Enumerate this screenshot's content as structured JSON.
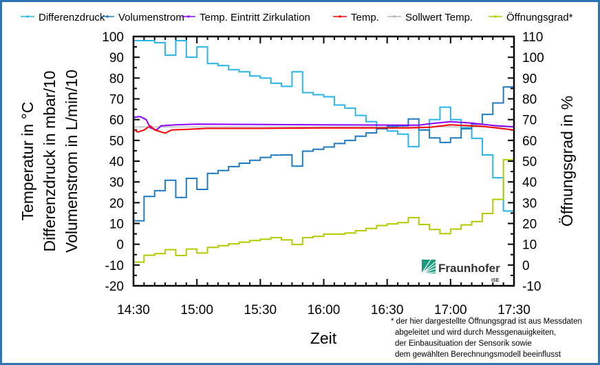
{
  "chart_data": {
    "type": "line",
    "title": "",
    "xlabel": "Zeit",
    "ylabel_left": [
      "Temperatur in °C",
      "Differenzdruck in mbar/10",
      "Volumenstrom in L/min/10"
    ],
    "ylabel_right": "Öffnungsgrad in %",
    "xlim": [
      "14:30",
      "17:30"
    ],
    "ylim_left": [
      -20,
      100
    ],
    "ylim_right": [
      -10,
      110
    ],
    "x_ticks": [
      "14:30",
      "15:00",
      "15:30",
      "16:00",
      "16:30",
      "17:00",
      "17:30"
    ],
    "y_ticks_left": [
      "-20",
      "-10",
      "0",
      "10",
      "20",
      "30",
      "40",
      "50",
      "60",
      "70",
      "80",
      "90",
      "100"
    ],
    "y_ticks_right": [
      "-10",
      "0",
      "10",
      "20",
      "30",
      "40",
      "50",
      "60",
      "70",
      "80",
      "90",
      "100",
      "110"
    ],
    "grid": false,
    "legend_position": "top",
    "step_interval_minutes": 5,
    "series": [
      {
        "name": "Differenzdruck",
        "axis": "left",
        "color": "#2bb5e8",
        "step": true,
        "values": [
          98,
          98,
          97,
          91,
          98,
          90,
          95,
          87,
          86,
          84,
          83,
          81,
          80,
          77.5,
          76,
          83,
          73,
          72,
          71,
          67,
          65.5,
          62,
          59,
          56,
          54.5,
          53,
          47,
          55,
          60,
          66,
          60,
          56,
          51,
          43,
          32,
          16
        ]
      },
      {
        "name": "Volumenstrom",
        "axis": "left",
        "color": "#1f7bc4",
        "step": true,
        "values": [
          11.3,
          23,
          25.8,
          30.8,
          22.5,
          31.7,
          26.4,
          34.1,
          35.5,
          37.4,
          39,
          40.4,
          41.8,
          42.9,
          43,
          37.6,
          44.8,
          45.7,
          46.8,
          48.5,
          50,
          52,
          53.6,
          55.6,
          56.7,
          57,
          60.3,
          55,
          51.2,
          49,
          51.2,
          55.6,
          57.8,
          62.5,
          68,
          75.7
        ]
      },
      {
        "name": "Temp. Eintritt Zirkulation",
        "axis": "left",
        "color": "#8b00ff",
        "step": false,
        "points": [
          [
            "14:30",
            61
          ],
          [
            "14:33",
            61.5
          ],
          [
            "14:36",
            60
          ],
          [
            "14:38",
            56
          ],
          [
            "14:41",
            55
          ],
          [
            "14:43",
            57
          ],
          [
            "14:50",
            57.5
          ],
          [
            "15:00",
            57.8
          ],
          [
            "16:00",
            57.5
          ],
          [
            "16:45",
            57.3
          ],
          [
            "16:50",
            58
          ],
          [
            "17:00",
            59
          ],
          [
            "17:10",
            58.3
          ],
          [
            "17:20",
            57.2
          ],
          [
            "17:30",
            56.5
          ]
        ]
      },
      {
        "name": "Temp.",
        "axis": "left",
        "color": "#ff0000",
        "step": false,
        "points": [
          [
            "14:30",
            55.5
          ],
          [
            "14:32",
            54
          ],
          [
            "14:35",
            55
          ],
          [
            "14:38",
            57
          ],
          [
            "14:40",
            55
          ],
          [
            "14:45",
            53.5
          ],
          [
            "14:48",
            55
          ],
          [
            "14:55",
            55.3
          ],
          [
            "15:05",
            55.8
          ],
          [
            "15:30",
            55.8
          ],
          [
            "16:00",
            56
          ],
          [
            "16:40",
            56
          ],
          [
            "16:50",
            56.3
          ],
          [
            "17:00",
            57.5
          ],
          [
            "17:15",
            56.8
          ],
          [
            "17:30",
            55
          ]
        ]
      },
      {
        "name": "Sollwert Temp.",
        "axis": "left",
        "color": "#b4b4b4",
        "step": false,
        "points": [
          [
            "14:30",
            56.5
          ],
          [
            "17:30",
            56.5
          ]
        ]
      },
      {
        "name": "Öffnungsgrad*",
        "axis": "right",
        "color": "#b3cc00",
        "step": true,
        "values": [
          1.4,
          4.7,
          5.5,
          7.4,
          4.6,
          7.7,
          5.8,
          8.5,
          9.3,
          10.2,
          11,
          11.8,
          12.4,
          13.2,
          12.1,
          9.9,
          13.2,
          13.8,
          14.9,
          14.9,
          15.4,
          16.5,
          17.6,
          19,
          19.8,
          20.4,
          22.8,
          19.5,
          17.1,
          15.1,
          17.3,
          19.3,
          20.9,
          24.8,
          31.6,
          50.7
        ]
      }
    ],
    "footnote": [
      "* der hier dargestellte Öffnungsgrad ist aus Messdaten",
      "abgeleitet und wird durch Messgenauigkeiten,",
      "der Einbausituation der Sensorik sowie",
      "dem gewählten Berechnungsmodell beeinflusst"
    ]
  },
  "logo": {
    "name": "Fraunhofer",
    "sub": "ISE",
    "color": "#179c7d"
  }
}
